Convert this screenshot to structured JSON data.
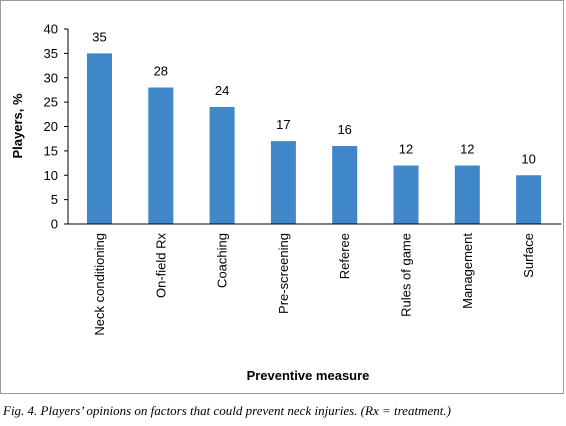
{
  "chart_data": {
    "type": "bar",
    "categories": [
      "Neck conditioning",
      "On-field Rx",
      "Coaching",
      "Pre-screening",
      "Referee",
      "Rules of game",
      "Management",
      "Surface"
    ],
    "values": [
      35,
      28,
      24,
      17,
      16,
      12,
      12,
      10
    ],
    "data_labels": [
      "35",
      "28",
      "24",
      "17",
      "16",
      "12",
      "12",
      "10"
    ],
    "title": "",
    "xlabel": "Preventive measure",
    "ylabel": "Players, %",
    "ylim": [
      0,
      40
    ],
    "yticks": [
      0,
      5,
      10,
      15,
      20,
      25,
      30,
      35,
      40
    ],
    "grid": false,
    "legend": "none",
    "bar_color": "#3f87c9"
  },
  "caption": "Fig. 4. Players’ opinions on factors that could prevent neck injuries. (Rx = treatment.)"
}
